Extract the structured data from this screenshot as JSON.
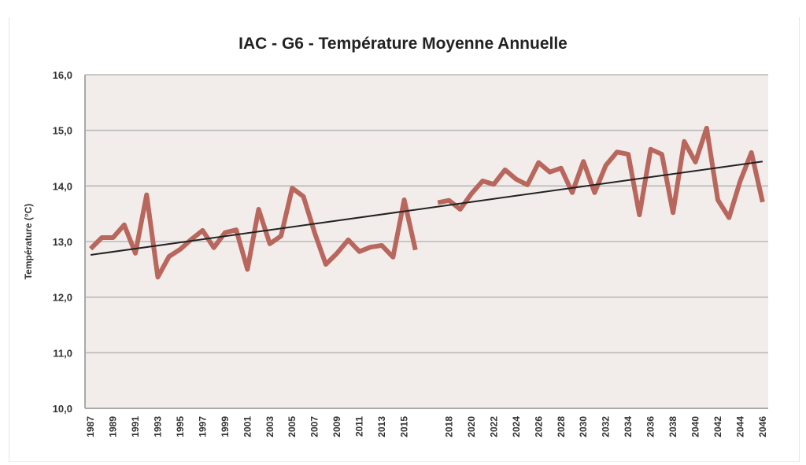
{
  "chart_data": {
    "type": "line",
    "title": "IAC - G6 - Température Moyenne Annuelle",
    "xlabel": "",
    "ylabel": "Température (°C)",
    "ylim": [
      10,
      16
    ],
    "yticks": [
      "10,0",
      "11,0",
      "12,0",
      "13,0",
      "14,0",
      "15,0",
      "16,0"
    ],
    "ytick_values": [
      10,
      11,
      12,
      13,
      14,
      15,
      16
    ],
    "grid": true,
    "legend": "none",
    "categories": [
      "1987",
      "1988",
      "1989",
      "1990",
      "1991",
      "1992",
      "1993",
      "1994",
      "1995",
      "1996",
      "1997",
      "1998",
      "1999",
      "2000",
      "2001",
      "2002",
      "2003",
      "2004",
      "2005",
      "2006",
      "2007",
      "2008",
      "2009",
      "2010",
      "2011",
      "2012",
      "2013",
      "2014",
      "2015",
      "2016",
      "",
      "2017",
      "2018",
      "2019",
      "2020",
      "2021",
      "2022",
      "2023",
      "2024",
      "2025",
      "2026",
      "2027",
      "2028",
      "2029",
      "2030",
      "2031",
      "2032",
      "2033",
      "2034",
      "2035",
      "2036",
      "2037",
      "2038",
      "2039",
      "2040",
      "2041",
      "2042",
      "2043",
      "2044",
      "2045",
      "2046"
    ],
    "xtick_labels": [
      "1987",
      "1989",
      "1991",
      "1993",
      "1995",
      "1997",
      "1999",
      "2001",
      "2003",
      "2005",
      "2007",
      "2009",
      "2011",
      "2013",
      "2015",
      "",
      "2018",
      "2020",
      "2022",
      "2024",
      "2026",
      "2028",
      "2030",
      "2032",
      "2034",
      "2036",
      "2038",
      "2040",
      "2042",
      "2044",
      "2046"
    ],
    "series": [
      {
        "name": "Température moyenne annuelle",
        "color": "#B9665D",
        "values": [
          12.87,
          13.07,
          13.07,
          13.3,
          12.79,
          13.84,
          12.36,
          12.73,
          12.86,
          13.04,
          13.2,
          12.89,
          13.16,
          13.21,
          12.5,
          13.58,
          12.96,
          13.1,
          13.96,
          13.81,
          13.16,
          12.59,
          12.79,
          13.03,
          12.82,
          12.9,
          12.93,
          12.72,
          13.75,
          12.85,
          null,
          13.7,
          13.74,
          13.58,
          13.86,
          14.09,
          14.03,
          14.29,
          14.12,
          14.02,
          14.42,
          14.25,
          14.32,
          13.88,
          14.44,
          13.88,
          14.37,
          14.61,
          14.57,
          13.48,
          14.66,
          14.57,
          13.52,
          14.8,
          14.43,
          15.04,
          13.75,
          13.43,
          14.09,
          14.6,
          13.71
        ]
      },
      {
        "name": "Tendance linéaire",
        "type": "trendline",
        "color": "#222222",
        "start": 12.76,
        "end": 14.44
      }
    ],
    "colors": {
      "plot_background": "#F2EDEB",
      "gridline": "#B9B9B9"
    }
  }
}
